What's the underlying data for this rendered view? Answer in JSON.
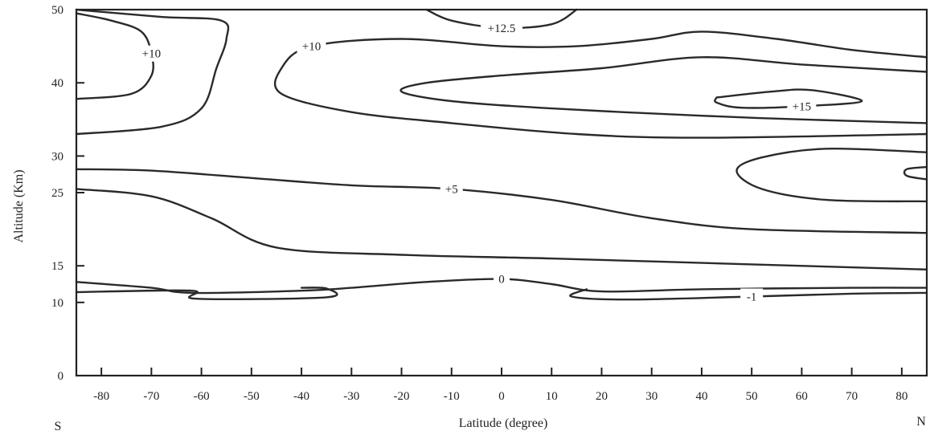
{
  "chart_data": {
    "type": "contour",
    "xlabel": "Latitude (degree)",
    "ylabel": "Altitude (Km)",
    "x_end_labels": {
      "left": "S",
      "right": "N"
    },
    "xlim": [
      -85,
      85
    ],
    "ylim": [
      0,
      50
    ],
    "x_ticks": [
      -80,
      -70,
      -60,
      -50,
      -40,
      -30,
      -20,
      -10,
      0,
      10,
      20,
      30,
      40,
      50,
      60,
      70,
      80
    ],
    "y_ticks": [
      0,
      10,
      15,
      25,
      30,
      40,
      50
    ],
    "y_tick_labels": [
      "0",
      "10",
      "15",
      "25",
      "30",
      "40",
      "50"
    ],
    "contours": [
      {
        "level": "+10",
        "points": [
          [
            -85,
            49.5
          ],
          [
            -78,
            48.5
          ],
          [
            -72,
            47
          ],
          [
            -70,
            44
          ],
          [
            -70,
            41
          ],
          [
            -74,
            38.5
          ],
          [
            -85,
            37.8
          ]
        ]
      },
      {
        "level": "",
        "points": [
          [
            -85,
            50
          ],
          [
            -68,
            49
          ],
          [
            -56,
            48.5
          ],
          [
            -55,
            46
          ],
          [
            -57,
            42
          ],
          [
            -60,
            36.5
          ],
          [
            -68,
            34
          ],
          [
            -85,
            33
          ]
        ]
      },
      {
        "level": "+12.5",
        "points": [
          [
            -15,
            50
          ],
          [
            -10,
            48.5
          ],
          [
            0,
            47.5
          ],
          [
            10,
            48
          ],
          [
            15,
            50
          ]
        ]
      },
      {
        "level": "+10",
        "points": [
          [
            85,
            43.5
          ],
          [
            70,
            44.5
          ],
          [
            55,
            46
          ],
          [
            40,
            47
          ],
          [
            30,
            46
          ],
          [
            15,
            45
          ],
          [
            0,
            45
          ],
          [
            -20,
            46
          ],
          [
            -38,
            45
          ],
          [
            -44,
            42
          ],
          [
            -44,
            38.5
          ],
          [
            -30,
            36
          ],
          [
            -10,
            34.5
          ],
          [
            15,
            33
          ],
          [
            40,
            32.5
          ],
          [
            85,
            33
          ]
        ]
      },
      {
        "level": "",
        "points": [
          [
            85,
            41.5
          ],
          [
            60,
            42.5
          ],
          [
            40,
            43.5
          ],
          [
            20,
            42
          ],
          [
            0,
            41
          ],
          [
            -15,
            40
          ],
          [
            -20,
            38.8
          ],
          [
            -10,
            37.5
          ],
          [
            10,
            36.5
          ],
          [
            40,
            35.5
          ],
          [
            60,
            35
          ],
          [
            85,
            34.5
          ]
        ]
      },
      {
        "level": "+15",
        "points": [
          [
            43,
            38
          ],
          [
            54,
            38.8
          ],
          [
            62,
            39
          ],
          [
            72,
            37.5
          ],
          [
            60,
            36.8
          ],
          [
            48,
            36.6
          ],
          [
            43,
            37.3
          ],
          [
            43,
            38
          ]
        ]
      },
      {
        "level": "",
        "points": [
          [
            85,
            30.5
          ],
          [
            65,
            31
          ],
          [
            52,
            29.8
          ],
          [
            47,
            28
          ],
          [
            52,
            25.5
          ],
          [
            65,
            24
          ],
          [
            85,
            23.8
          ]
        ]
      },
      {
        "level": "",
        "points": [
          [
            85,
            28.5
          ],
          [
            81,
            28.2
          ],
          [
            81,
            27.3
          ],
          [
            85,
            26.8
          ]
        ]
      },
      {
        "level": "+5",
        "points": [
          [
            -85,
            28.2
          ],
          [
            -70,
            28
          ],
          [
            -50,
            27
          ],
          [
            -30,
            26
          ],
          [
            -10,
            25.5
          ],
          [
            10,
            24
          ],
          [
            30,
            21.5
          ],
          [
            50,
            20
          ],
          [
            85,
            19.5
          ]
        ]
      },
      {
        "level": "",
        "points": [
          [
            -85,
            25.5
          ],
          [
            -70,
            24.5
          ],
          [
            -58,
            21.5
          ],
          [
            -45,
            17.5
          ],
          [
            -20,
            16.5
          ],
          [
            10,
            16
          ],
          [
            50,
            15.2
          ],
          [
            85,
            14.5
          ]
        ]
      },
      {
        "level": "0",
        "points": [
          [
            -85,
            12.8
          ],
          [
            -70,
            12
          ],
          [
            -62,
            11.3
          ],
          [
            -40,
            11.6
          ],
          [
            -30,
            12
          ],
          [
            -15,
            12.8
          ],
          [
            0,
            13.2
          ],
          [
            10,
            12.5
          ],
          [
            20,
            11.5
          ],
          [
            40,
            11.8
          ],
          [
            70,
            12
          ],
          [
            85,
            12
          ]
        ]
      },
      {
        "level": "",
        "points": [
          [
            -85,
            11.4
          ],
          [
            -62,
            11.6
          ],
          [
            -61,
            10.5
          ],
          [
            -35,
            10.7
          ],
          [
            -35,
            11.9
          ],
          [
            -40,
            12
          ]
        ]
      },
      {
        "level": "-1",
        "points": [
          [
            17,
            11.8
          ],
          [
            14,
            10.8
          ],
          [
            25,
            10.4
          ],
          [
            50,
            10.8
          ],
          [
            70,
            11.2
          ],
          [
            85,
            11.3
          ]
        ]
      }
    ]
  }
}
